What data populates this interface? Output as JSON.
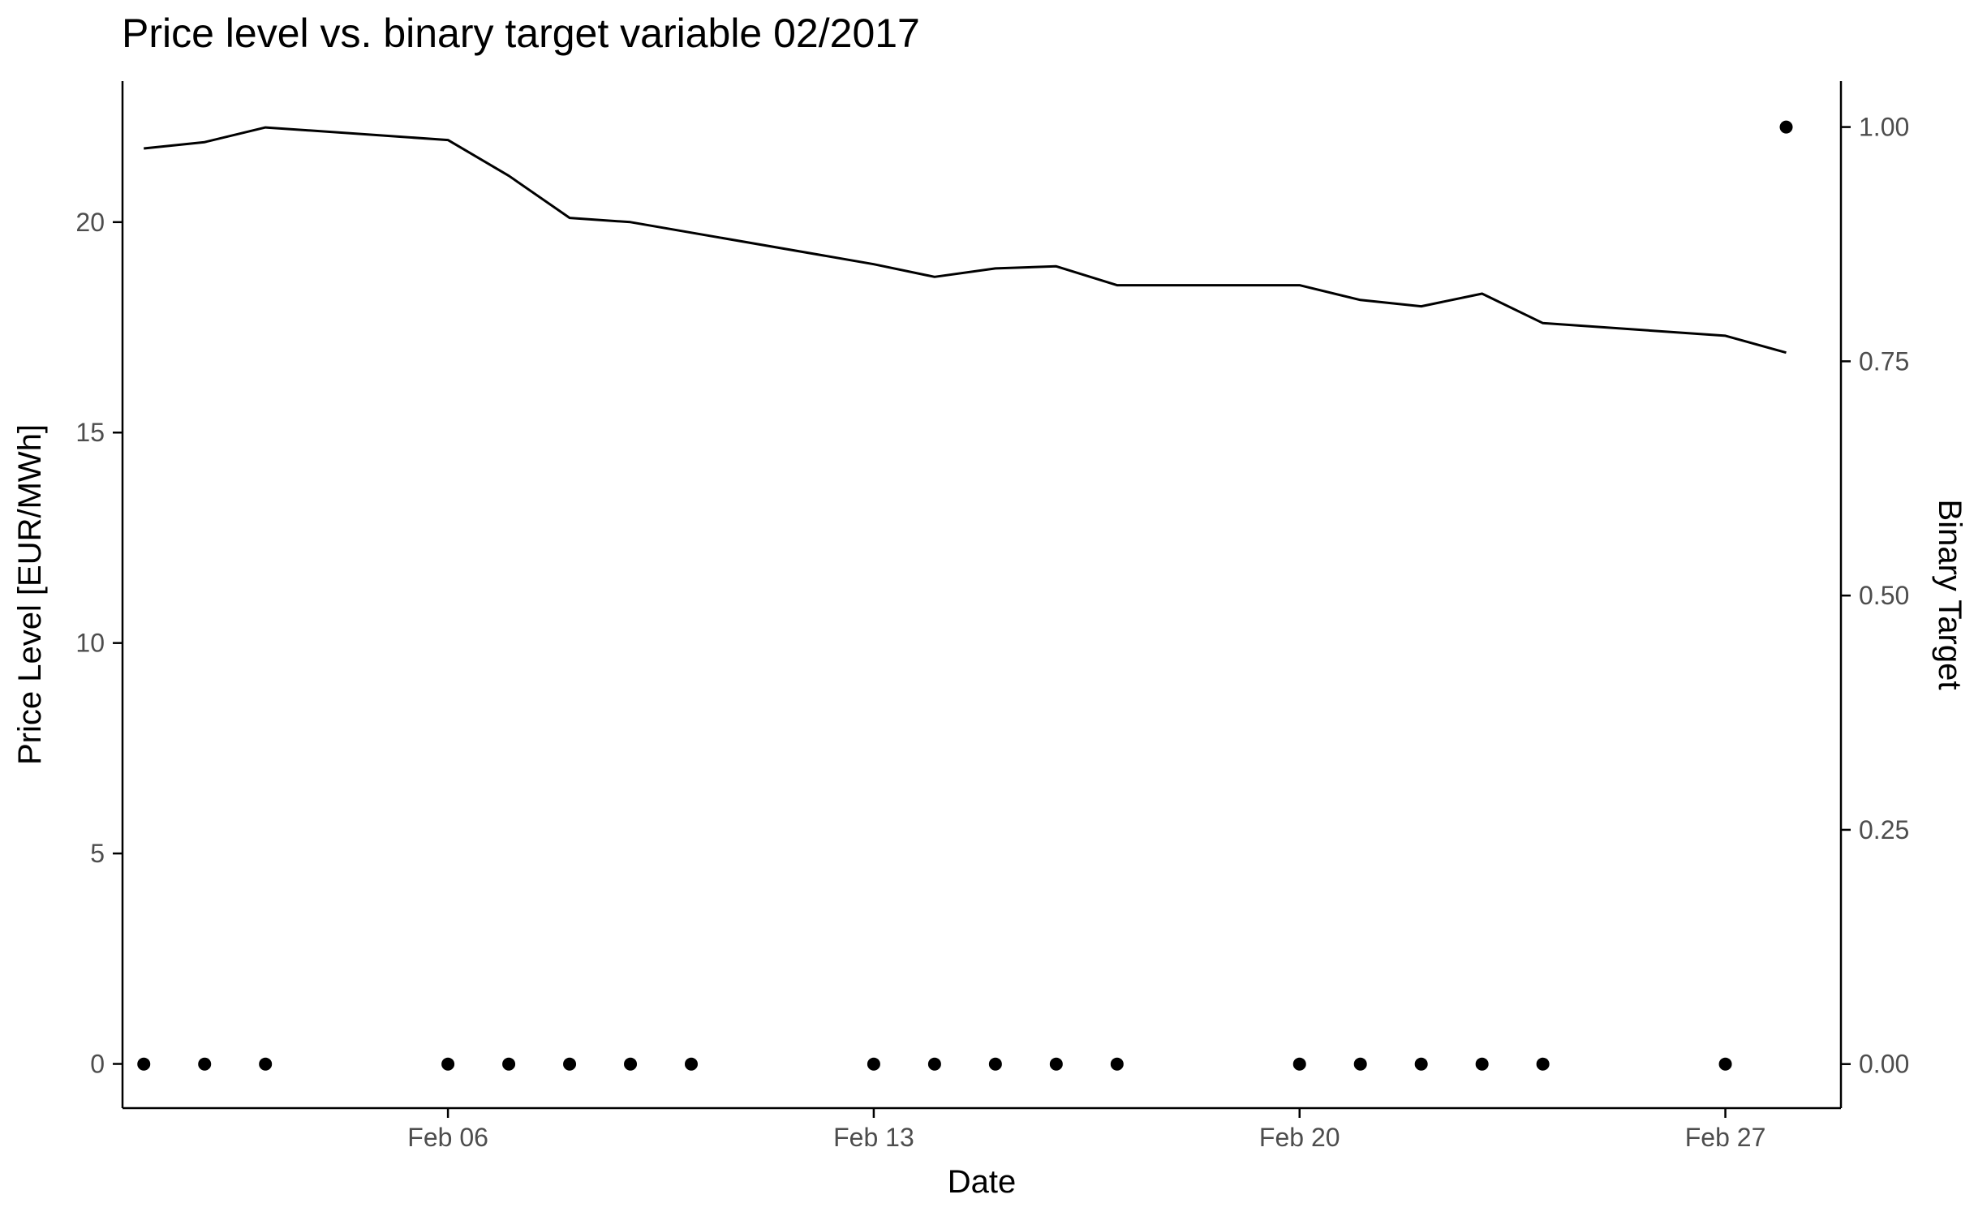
{
  "chart_data": {
    "type": "line",
    "title": "Price level vs. binary target variable 02/2017",
    "xlabel": "Date",
    "ylabel": "Price Level [EUR/MWh]",
    "y2label": "Binary Target",
    "x_ticks": [
      "Feb 06",
      "Feb 13",
      "Feb 20",
      "Feb 27"
    ],
    "x_tick_days": [
      6,
      13,
      20,
      27
    ],
    "xlim_days": [
      0.65,
      28.9
    ],
    "y_ticks": [
      "0",
      "5",
      "10",
      "15",
      "20"
    ],
    "y_tick_values": [
      0,
      5,
      10,
      15,
      20
    ],
    "ylim": [
      -1.05,
      23.35
    ],
    "y2_ticks": [
      "0.00",
      "0.25",
      "0.50",
      "0.75",
      "1.00"
    ],
    "y2_tick_values": [
      0,
      0.25,
      0.5,
      0.75,
      1.0
    ],
    "y2lim": [
      -0.047,
      1.049
    ],
    "grid": false,
    "series": [
      {
        "type": "line",
        "axis": "left",
        "color": "#000000",
        "points": [
          {
            "x": "2017-02-01",
            "y": 21.75
          },
          {
            "x": "2017-02-02",
            "y": 21.9
          },
          {
            "x": "2017-02-03",
            "y": 22.25
          },
          {
            "x": "2017-02-06",
            "y": 21.95
          },
          {
            "x": "2017-02-07",
            "y": 21.1
          },
          {
            "x": "2017-02-08",
            "y": 20.1
          },
          {
            "x": "2017-02-09",
            "y": 20.0
          },
          {
            "x": "2017-02-13",
            "y": 19.0
          },
          {
            "x": "2017-02-14",
            "y": 18.7
          },
          {
            "x": "2017-02-15",
            "y": 18.9
          },
          {
            "x": "2017-02-16",
            "y": 18.95
          },
          {
            "x": "2017-02-17",
            "y": 18.5
          },
          {
            "x": "2017-02-20",
            "y": 18.5
          },
          {
            "x": "2017-02-21",
            "y": 18.15
          },
          {
            "x": "2017-02-22",
            "y": 18.0
          },
          {
            "x": "2017-02-23",
            "y": 18.3
          },
          {
            "x": "2017-02-24",
            "y": 17.6
          },
          {
            "x": "2017-02-27",
            "y": 17.3
          },
          {
            "x": "2017-02-28",
            "y": 16.9
          }
        ]
      },
      {
        "type": "scatter",
        "axis": "right",
        "color": "#000000",
        "points": [
          {
            "x": "2017-02-01",
            "y": 0
          },
          {
            "x": "2017-02-02",
            "y": 0
          },
          {
            "x": "2017-02-03",
            "y": 0
          },
          {
            "x": "2017-02-06",
            "y": 0
          },
          {
            "x": "2017-02-07",
            "y": 0
          },
          {
            "x": "2017-02-08",
            "y": 0
          },
          {
            "x": "2017-02-09",
            "y": 0
          },
          {
            "x": "2017-02-10",
            "y": 0
          },
          {
            "x": "2017-02-13",
            "y": 0
          },
          {
            "x": "2017-02-14",
            "y": 0
          },
          {
            "x": "2017-02-15",
            "y": 0
          },
          {
            "x": "2017-02-16",
            "y": 0
          },
          {
            "x": "2017-02-17",
            "y": 0
          },
          {
            "x": "2017-02-20",
            "y": 0
          },
          {
            "x": "2017-02-21",
            "y": 0
          },
          {
            "x": "2017-02-22",
            "y": 0
          },
          {
            "x": "2017-02-23",
            "y": 0
          },
          {
            "x": "2017-02-24",
            "y": 0
          },
          {
            "x": "2017-02-27",
            "y": 0
          },
          {
            "x": "2017-02-28",
            "y": 1
          }
        ]
      }
    ]
  }
}
